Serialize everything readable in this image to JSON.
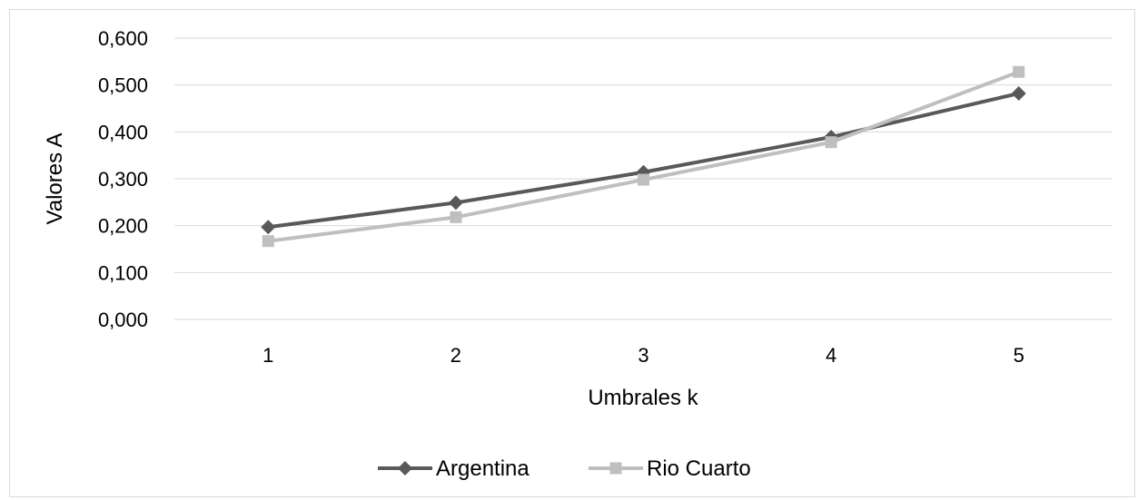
{
  "chart_data": {
    "type": "line",
    "title": "",
    "xlabel": "Umbrales k",
    "ylabel": "Valores A",
    "categories": [
      "1",
      "2",
      "3",
      "4",
      "5"
    ],
    "ylim": [
      0,
      0.6
    ],
    "yticks": [
      "0,000",
      "0,100",
      "0,200",
      "0,300",
      "0,400",
      "0,500",
      "0,600"
    ],
    "grid": "horizontal",
    "legend_position": "bottom",
    "series": [
      {
        "name": "Argentina",
        "values": [
          0.197,
          0.249,
          0.314,
          0.389,
          0.482
        ],
        "color": "#595959",
        "marker": "diamond"
      },
      {
        "name": "Rio Cuarto",
        "values": [
          0.167,
          0.218,
          0.298,
          0.378,
          0.528
        ],
        "color": "#bfbfbf",
        "marker": "square"
      }
    ]
  }
}
